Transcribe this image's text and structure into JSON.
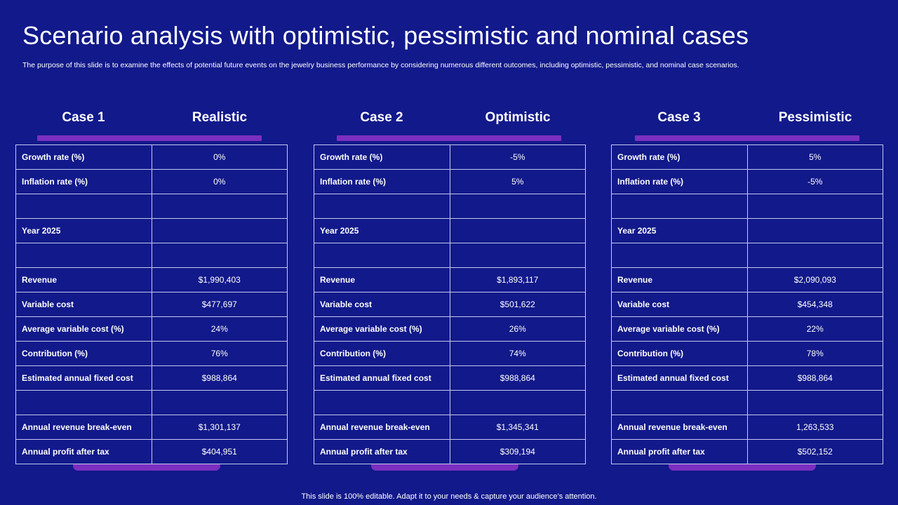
{
  "title": "Scenario analysis with optimistic, pessimistic and nominal cases",
  "subtitle": "The purpose of this slide is to examine the effects of potential future events on the jewelry business performance by considering numerous different outcomes, including optimistic, pessimistic, and nominal case scenarios.",
  "cases": [
    {
      "label": "Case 1",
      "type": "Realistic",
      "rows": [
        {
          "label": "Growth rate (%)",
          "value": "0%"
        },
        {
          "label": "Inflation rate (%)",
          "value": "0%"
        },
        {
          "label": "",
          "value": ""
        },
        {
          "label": " Year 2025",
          "value": ""
        },
        {
          "label": "",
          "value": ""
        },
        {
          "label": "Revenue",
          "value": "$1,990,403"
        },
        {
          "label": "Variable cost",
          "value": "$477,697"
        },
        {
          "label": "Average variable cost (%)",
          "value": "24%"
        },
        {
          "label": "Contribution (%)",
          "value": "76%"
        },
        {
          "label": "Estimated annual fixed cost",
          "value": "$988,864"
        },
        {
          "label": "",
          "value": ""
        },
        {
          "label": "Annual revenue break-even",
          "value": "$1,301,137"
        },
        {
          "label": "Annual profit after tax",
          "value": "$404,951"
        }
      ]
    },
    {
      "label": "Case 2",
      "type": "Optimistic",
      "rows": [
        {
          "label": "Growth rate (%)",
          "value": "-5%"
        },
        {
          "label": "Inflation rate (%)",
          "value": "5%"
        },
        {
          "label": "",
          "value": ""
        },
        {
          "label": " Year 2025",
          "value": ""
        },
        {
          "label": "",
          "value": ""
        },
        {
          "label": "Revenue",
          "value": "$1,893,117"
        },
        {
          "label": "Variable cost",
          "value": "$501,622"
        },
        {
          "label": "Average variable cost (%)",
          "value": "26%"
        },
        {
          "label": "Contribution (%)",
          "value": "74%"
        },
        {
          "label": "Estimated annual fixed cost",
          "value": "$988,864"
        },
        {
          "label": "",
          "value": ""
        },
        {
          "label": "Annual revenue break-even",
          "value": "$1,345,341"
        },
        {
          "label": "Annual profit after tax",
          "value": "$309,194"
        }
      ]
    },
    {
      "label": "Case 3",
      "type": "Pessimistic",
      "rows": [
        {
          "label": "Growth rate (%)",
          "value": "5%"
        },
        {
          "label": "Inflation rate (%)",
          "value": "-5%"
        },
        {
          "label": "",
          "value": ""
        },
        {
          "label": " Year 2025",
          "value": ""
        },
        {
          "label": "",
          "value": ""
        },
        {
          "label": "Revenue",
          "value": "$2,090,093"
        },
        {
          "label": "Variable cost",
          "value": "$454,348"
        },
        {
          "label": "Average variable cost (%)",
          "value": "22%"
        },
        {
          "label": "Contribution (%)",
          "value": "78%"
        },
        {
          "label": "Estimated annual fixed cost",
          "value": "$988,864"
        },
        {
          "label": "",
          "value": ""
        },
        {
          "label": "Annual revenue break-even",
          "value": "1,263,533"
        },
        {
          "label": "Annual profit after tax",
          "value": "$502,152"
        }
      ]
    }
  ],
  "footer": "This slide is 100% editable. Adapt it to your needs & capture your audience’s attention.",
  "colors": {
    "background": "#12198a",
    "accent": "#7b2fc0",
    "grid": "#c4c8f0"
  }
}
